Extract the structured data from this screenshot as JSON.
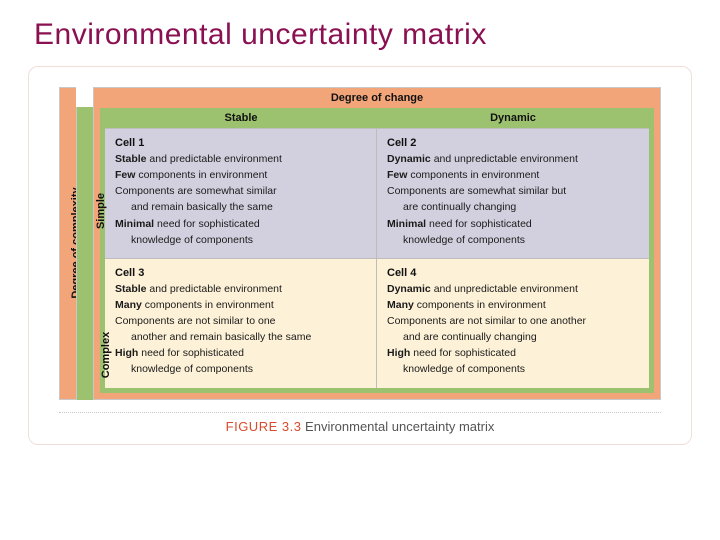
{
  "title": "Environmental uncertainty matrix",
  "axes": {
    "top_title": "Degree of change",
    "left_title": "Degree of complexity",
    "col_headers": [
      "Stable",
      "Dynamic"
    ],
    "row_headers": [
      "Simple",
      "Complex"
    ]
  },
  "cells": [
    {
      "label": "Cell 1",
      "lines": [
        {
          "lead": "Stable",
          "rest": " and predictable environment"
        },
        {
          "lead": "Few",
          "rest": " components in environment"
        },
        {
          "lead": "",
          "rest": "Components are somewhat similar"
        },
        {
          "lead": "",
          "rest": "and remain basically the same",
          "indent": true
        },
        {
          "lead": "Minimal",
          "rest": " need for sophisticated"
        },
        {
          "lead": "",
          "rest": "knowledge of components",
          "indent": true
        }
      ]
    },
    {
      "label": "Cell 2",
      "lines": [
        {
          "lead": "Dynamic",
          "rest": " and unpredictable environment"
        },
        {
          "lead": "Few",
          "rest": " components in environment"
        },
        {
          "lead": "",
          "rest": "Components are somewhat similar but"
        },
        {
          "lead": "",
          "rest": "are continually changing",
          "indent": true
        },
        {
          "lead": "Minimal",
          "rest": " need for sophisticated"
        },
        {
          "lead": "",
          "rest": "knowledge of components",
          "indent": true
        }
      ]
    },
    {
      "label": "Cell 3",
      "lines": [
        {
          "lead": "Stable",
          "rest": " and predictable environment"
        },
        {
          "lead": "Many",
          "rest": " components in environment"
        },
        {
          "lead": "",
          "rest": "Components are not similar to one"
        },
        {
          "lead": "",
          "rest": "another and remain basically the same",
          "indent": true
        },
        {
          "lead": "High",
          "rest": " need for sophisticated"
        },
        {
          "lead": "",
          "rest": "knowledge of components",
          "indent": true
        }
      ]
    },
    {
      "label": "Cell 4",
      "lines": [
        {
          "lead": "Dynamic",
          "rest": " and unpredictable environment"
        },
        {
          "lead": "Many",
          "rest": " components in environment"
        },
        {
          "lead": "",
          "rest": "Components are not similar to one another"
        },
        {
          "lead": "",
          "rest": "and are continually changing",
          "indent": true
        },
        {
          "lead": "High",
          "rest": " need for sophisticated"
        },
        {
          "lead": "",
          "rest": "knowledge of components",
          "indent": true
        }
      ]
    }
  ],
  "caption": {
    "fig": "FIGURE 3.3",
    "text": " Environmental uncertainty matrix"
  },
  "colors": {
    "title": "#8a1052",
    "outer_band": "#f2a579",
    "inner_band": "#9dc26f",
    "cell_top_bg": "#d2d0de",
    "cell_bottom_bg": "#fdf2d8",
    "caption_fig": "#d94a2f",
    "panel_border": "#f0ded9"
  }
}
